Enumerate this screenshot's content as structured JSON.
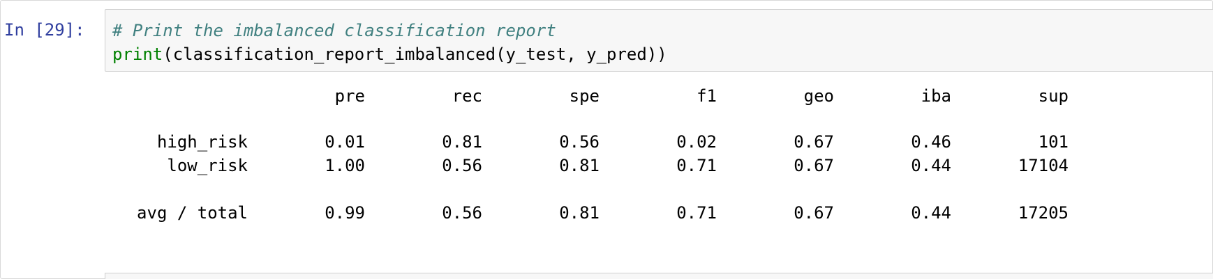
{
  "cell": {
    "prompt": "In [29]:",
    "code": {
      "comment": "# Print the imbalanced classification report",
      "builtin": "print",
      "rest": "(classification_report_imbalanced(y_test, y_pred))"
    }
  },
  "report": {
    "headers": [
      "pre",
      "rec",
      "spe",
      "f1",
      "geo",
      "iba",
      "sup"
    ],
    "rows": [
      {
        "label": "high_risk",
        "values": [
          "0.01",
          "0.81",
          "0.56",
          "0.02",
          "0.67",
          "0.46",
          "101"
        ]
      },
      {
        "label": "low_risk",
        "values": [
          "1.00",
          "0.56",
          "0.81",
          "0.71",
          "0.67",
          "0.44",
          "17104"
        ]
      }
    ],
    "total": {
      "label": "avg / total",
      "values": [
        "0.99",
        "0.56",
        "0.81",
        "0.71",
        "0.67",
        "0.44",
        "17205"
      ]
    }
  }
}
